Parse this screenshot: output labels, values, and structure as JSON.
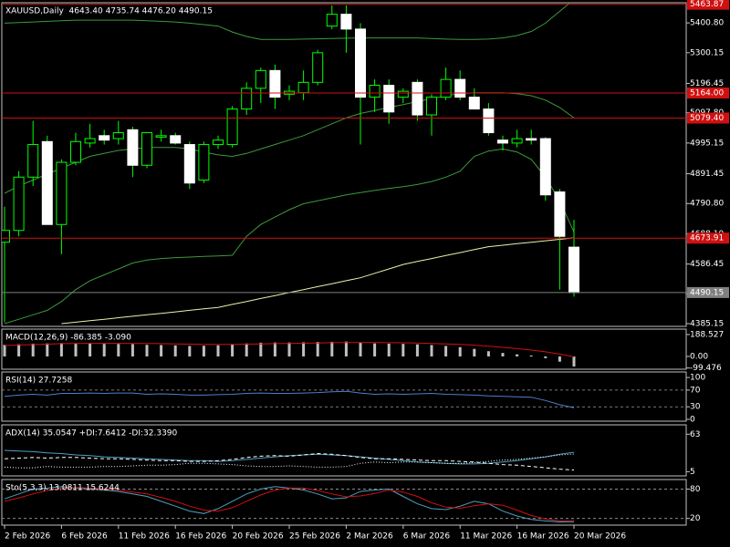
{
  "chart_data": [
    {
      "type": "candlestick",
      "title": "XAUUSD,Daily  4643.40 4735.74 4476.20 4490.15",
      "categories": [
        "2 Feb 2026",
        null,
        null,
        null,
        "6 Feb 2026",
        null,
        null,
        null,
        "11 Feb 2026",
        null,
        null,
        null,
        "16 Feb 2026",
        null,
        null,
        null,
        "20 Feb 2026",
        null,
        null,
        null,
        "25 Feb 2026",
        null,
        null,
        null,
        "2 Mar 2026",
        null,
        null,
        null,
        "6 Mar 2026",
        null,
        null,
        null,
        "11 Mar 2026",
        null,
        null,
        null,
        "16 Mar 2026",
        null,
        null,
        null,
        "20 Mar 2026"
      ],
      "open": [
        4660,
        4700,
        4880,
        5000,
        4720,
        4930,
        4995,
        5020,
        5010,
        5040,
        4920,
        5015,
        5020,
        4990,
        4870,
        4990,
        4990,
        5110,
        5180,
        5240,
        5160,
        5165,
        5200,
        5390,
        5430,
        5380,
        5150,
        5190,
        5150,
        5200,
        5090,
        5150,
        5210,
        5150,
        5110,
        5005,
        4995,
        5010,
        5010,
        4830,
        4643.4
      ],
      "high": [
        4780,
        4900,
        5070,
        5020,
        4940,
        5030,
        5060,
        5040,
        5070,
        5050,
        5030,
        5040,
        5030,
        5000,
        5000,
        5020,
        5120,
        5200,
        5250,
        5260,
        5190,
        5240,
        5310,
        5460,
        5460,
        5400,
        5210,
        5210,
        5180,
        5210,
        5160,
        5250,
        5240,
        5180,
        5130,
        5020,
        5040,
        5040,
        5015,
        4840,
        4735.74
      ],
      "low": [
        4390,
        4680,
        4850,
        4720,
        4620,
        4920,
        4980,
        4990,
        4990,
        4880,
        4910,
        5000,
        4990,
        4840,
        4860,
        4975,
        4980,
        5090,
        5130,
        5110,
        5140,
        5140,
        5190,
        5380,
        5300,
        4990,
        5100,
        5060,
        5130,
        5070,
        5020,
        5140,
        5140,
        5110,
        5020,
        4970,
        4980,
        4990,
        4800,
        4500,
        4476.2
      ],
      "close": [
        4700,
        4880,
        4990,
        4720,
        4930,
        5000,
        5010,
        5005,
        5030,
        4920,
        5030,
        5020,
        4995,
        4860,
        4990,
        5005,
        5110,
        5180,
        5240,
        5150,
        5170,
        5200,
        5300,
        5430,
        5380,
        5150,
        5190,
        5100,
        5170,
        5090,
        5150,
        5210,
        5150,
        5110,
        5030,
        4995,
        5010,
        5005,
        4820,
        4680,
        4490.15
      ],
      "up_color": "#000000",
      "down_color": "#ffffff",
      "wick_color": "#00ff00",
      "series": [
        {
          "color": "#3c9a3c",
          "values": [
            5400,
            5402,
            5404,
            5406,
            5408,
            5410,
            5410,
            5410,
            5410,
            5410,
            5408,
            5406,
            5404,
            5400,
            5395,
            5390,
            5370,
            5355,
            5345,
            5345,
            5345,
            5346,
            5347,
            5348,
            5349,
            5350,
            5350,
            5350,
            5350,
            5350,
            5348,
            5346,
            5345,
            5345,
            5346,
            5350,
            5358,
            5372,
            5400,
            5440,
            5480
          ]
        },
        {
          "color": "#3c9a3c",
          "values": [
            4825,
            4850,
            4870,
            4890,
            4910,
            4930,
            4950,
            4960,
            4970,
            4975,
            4980,
            4980,
            4980,
            4975,
            4965,
            4955,
            4950,
            4960,
            4975,
            4990,
            5005,
            5020,
            5040,
            5060,
            5080,
            5095,
            5105,
            5115,
            5125,
            5135,
            5145,
            5155,
            5162,
            5165,
            5165,
            5165,
            5162,
            5155,
            5140,
            5115,
            5080
          ]
        },
        {
          "color": "#3c9a3c",
          "values": [
            4385,
            4400,
            4415,
            4430,
            4460,
            4500,
            4530,
            4550,
            4570,
            4590,
            4600,
            4605,
            4608,
            4610,
            4612,
            4614,
            4616,
            4680,
            4720,
            4745,
            4770,
            4790,
            4800,
            4810,
            4820,
            4828,
            4835,
            4842,
            4848,
            4855,
            4865,
            4880,
            4900,
            4950,
            4968,
            4975,
            4965,
            4940,
            4880,
            4800,
            4695
          ]
        },
        {
          "color": "#eeeeaa",
          "values": [
            null,
            null,
            null,
            null,
            4385,
            4390,
            4395,
            4400,
            4405,
            4410,
            4415,
            4420,
            4425,
            4430,
            4435,
            4440,
            4450,
            4460,
            4470,
            4480,
            4490,
            4500,
            4510,
            4520,
            4530,
            4540,
            4555,
            4570,
            4585,
            4595,
            4605,
            4615,
            4625,
            4635,
            4645,
            4650,
            4655,
            4660,
            4665,
            4670,
            4675
          ]
        }
      ],
      "price_lines": [
        {
          "value": 5463.87,
          "label": "5463.87",
          "color": "#d01010"
        },
        {
          "value": 5164,
          "label": "5164.00",
          "color": "#d01010"
        },
        {
          "value": 5079.4,
          "label": "5079.40",
          "color": "#d01010"
        },
        {
          "value": 4673.91,
          "label": "4673.91",
          "color": "#d01010"
        },
        {
          "value": 4490.15,
          "label": "4490.15",
          "color": "#808080"
        }
      ],
      "ylim": [
        4375.9,
        5468.9
      ],
      "yticks": [
        {
          "value": 5400.8,
          "label": "5400.80"
        },
        5300.15,
        5196.45,
        {
          "value": 5097.8,
          "label": "5097.80"
        },
        4995.15,
        4891.45,
        {
          "value": 4790.8,
          "label": "4790.80"
        },
        {
          "value": 4688.1,
          "label": "4688.10"
        },
        4586.45,
        {
          "value": 4485.8,
          "label": "4485.80"
        },
        4385.15
      ]
    },
    {
      "type": "macd",
      "title": "MACD(12,26,9) -86.385 -3.090",
      "values": [
        100,
        105,
        110,
        112,
        115,
        112,
        110,
        108,
        107,
        106,
        100,
        98,
        95,
        90,
        92,
        96,
        105,
        112,
        118,
        120,
        120,
        122,
        124,
        126,
        128,
        120,
        112,
        110,
        108,
        104,
        98,
        90,
        80,
        65,
        45,
        30,
        18,
        8,
        -15,
        -45,
        -86.385
      ],
      "color": "#c0c0c0",
      "series": [
        {
          "color": "#d01010",
          "values": [
            95,
            98,
            102,
            106,
            110,
            112,
            113,
            113,
            113,
            112,
            111,
            110,
            108,
            106,
            104,
            103,
            104,
            106,
            108,
            110,
            112,
            114,
            116,
            118,
            120,
            120,
            119,
            118,
            117,
            115,
            112,
            108,
            104,
            97,
            88,
            78,
            67,
            55,
            40,
            20,
            -3.09
          ]
        }
      ],
      "ylim": [
        -110,
        235
      ],
      "yticks": [
        188.527,
        {
          "value": 0,
          "label": "0.00"
        },
        -99.476
      ]
    },
    {
      "type": "line",
      "title": "RSI(14) 27.7258",
      "series": [
        {
          "color": "#4c7fd0",
          "values": [
            55,
            58,
            60,
            58,
            62,
            62,
            63,
            62,
            63,
            63,
            60,
            61,
            60,
            58,
            58,
            59,
            60,
            62,
            63,
            62,
            62,
            63,
            64,
            66,
            67,
            63,
            60,
            61,
            60,
            61,
            62,
            60,
            59,
            58,
            56,
            55,
            54,
            53,
            45,
            35,
            27.7258
          ]
        }
      ],
      "levels": [
        70,
        30
      ],
      "ylim": [
        -4.4,
        113.3
      ],
      "yticks": [
        100,
        70,
        30,
        0
      ]
    },
    {
      "type": "line",
      "title": "ADX(14) 35.0547 +DI:7.6412 -DI:32.3390",
      "series": [
        {
          "color": "#4ca0c0",
          "dash": "none",
          "values": [
            38,
            37,
            36,
            34,
            33,
            31,
            30,
            28,
            27,
            26,
            25,
            24,
            23,
            22,
            22,
            21,
            22,
            24,
            26,
            28,
            30,
            31,
            32,
            31,
            30,
            28,
            26,
            24,
            22,
            20,
            19,
            18,
            17,
            17,
            18,
            20,
            22,
            25,
            28,
            32,
            35.0547
          ]
        },
        {
          "color": "#ffffff",
          "dash": "4 3",
          "values": [
            25,
            26,
            27,
            26,
            27,
            27,
            26,
            25,
            25,
            24,
            23,
            22,
            22,
            21,
            21,
            22,
            24,
            27,
            29,
            30,
            29,
            31,
            33,
            32,
            30,
            27,
            25,
            25,
            24,
            23,
            22,
            22,
            21,
            20,
            18,
            16,
            15,
            13,
            11,
            9,
            7.6412
          ]
        },
        {
          "color": "#ffffff",
          "dash": "1 2",
          "values": [
            12,
            11,
            11,
            13,
            12,
            12,
            12,
            13,
            13,
            14,
            15,
            15,
            16,
            18,
            18,
            17,
            16,
            14,
            13,
            13,
            14,
            13,
            12,
            12,
            13,
            18,
            20,
            19,
            20,
            20,
            19,
            18,
            18,
            19,
            21,
            23,
            24,
            26,
            28,
            31,
            32.339
          ]
        }
      ],
      "ylim": [
        -1.5,
        77.5
      ],
      "yticks": [
        63,
        5
      ]
    },
    {
      "type": "line",
      "title": "Sto(5,3,3) 13.0811 15.6244",
      "series": [
        {
          "color": "#4ca0c0",
          "values": [
            60,
            70,
            80,
            82,
            85,
            82,
            80,
            78,
            75,
            70,
            65,
            55,
            45,
            35,
            30,
            40,
            55,
            70,
            80,
            85,
            82,
            78,
            70,
            60,
            62,
            75,
            78,
            80,
            65,
            50,
            40,
            38,
            45,
            55,
            50,
            35,
            25,
            18,
            15,
            13,
            13.0811
          ]
        },
        {
          "color": "#d01010",
          "values": [
            55,
            62,
            70,
            77,
            82,
            83,
            82,
            80,
            78,
            74,
            70,
            63,
            55,
            45,
            37,
            35,
            42,
            55,
            68,
            78,
            82,
            82,
            77,
            70,
            64,
            66,
            71,
            78,
            74,
            65,
            52,
            43,
            41,
            46,
            50,
            47,
            37,
            26,
            19,
            15,
            15.6244
          ]
        }
      ],
      "levels": [
        80,
        20
      ],
      "ylim": [
        6.4,
        99.4
      ],
      "yticks": [
        80,
        20
      ]
    }
  ]
}
